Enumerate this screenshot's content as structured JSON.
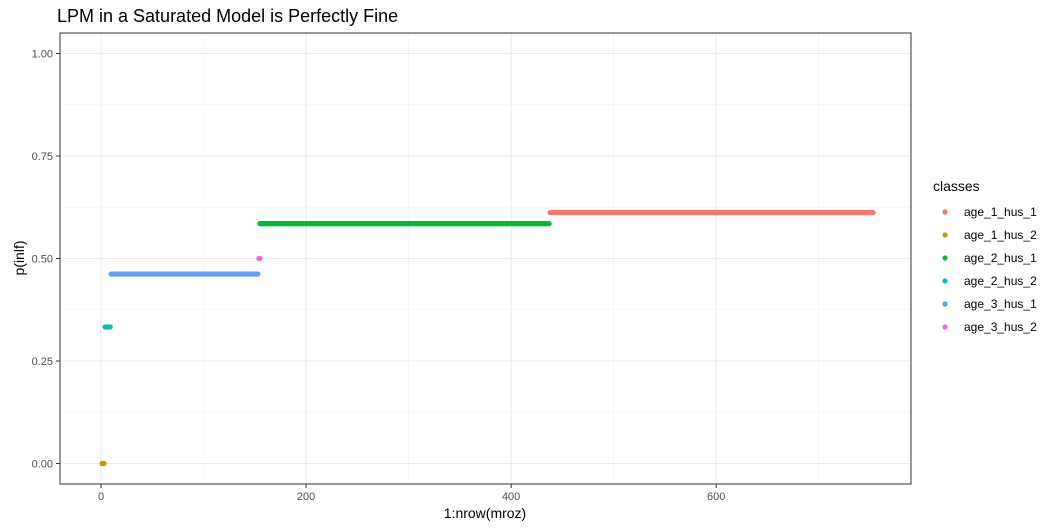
{
  "chart_data": {
    "type": "scatter",
    "title": "LPM in a Saturated Model is Perfectly Fine",
    "xlabel": "1:nrow(mroz)",
    "ylabel": "p(inlf)",
    "xlim": [
      -40,
      790
    ],
    "ylim": [
      -0.05,
      1.05
    ],
    "x_ticks": [
      0,
      200,
      400,
      600
    ],
    "x_tick_labels": [
      "0",
      "200",
      "400",
      "600"
    ],
    "y_ticks": [
      0,
      0.25,
      0.5,
      0.75,
      1.0
    ],
    "y_tick_labels": [
      "0.00",
      "0.25",
      "0.50",
      "0.75",
      "1.00"
    ],
    "grid": true,
    "legend": {
      "title": "classes",
      "position": "right"
    },
    "series": [
      {
        "name": "age_1_hus_1",
        "color": "#F8766D",
        "x_start": 438,
        "x_end": 753,
        "y": 0.612
      },
      {
        "name": "age_1_hus_2",
        "color": "#B79F00",
        "x_start": 1,
        "x_end": 3,
        "y": 0.0
      },
      {
        "name": "age_2_hus_1",
        "color": "#00BA38",
        "x_start": 155,
        "x_end": 437,
        "y": 0.585
      },
      {
        "name": "age_2_hus_2",
        "color": "#00BFC4",
        "x_start": 4,
        "x_end": 9,
        "y": 0.333
      },
      {
        "name": "age_3_hus_1",
        "color": "#619CFF",
        "x_start": 10,
        "x_end": 153,
        "y": 0.462
      },
      {
        "name": "age_3_hus_2",
        "color": "#F564E3",
        "x_start": 154,
        "x_end": 155,
        "y": 0.5
      }
    ]
  }
}
